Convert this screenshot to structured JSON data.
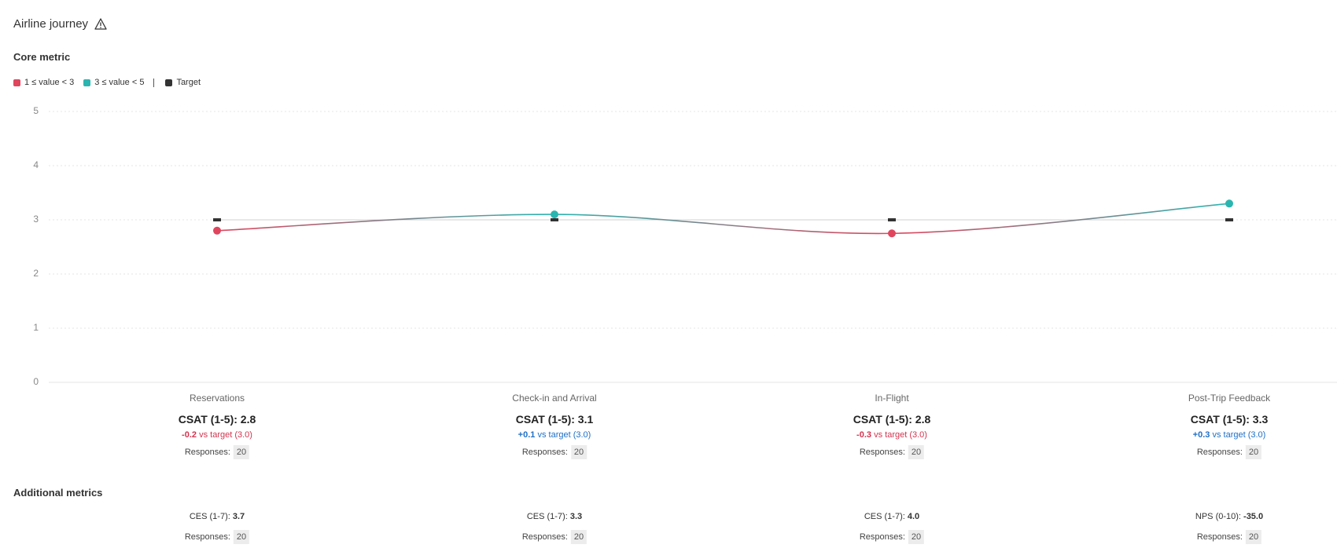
{
  "header": {
    "title": "Airline journey"
  },
  "core_metric": {
    "title": "Core metric"
  },
  "chart_data": {
    "type": "line",
    "categories": [
      "Reservations",
      "Check-in and Arrival",
      "In-Flight",
      "Post-Trip Feedback"
    ],
    "series": [
      {
        "values": [
          2.8,
          3.1,
          2.75,
          3.3
        ],
        "value_labels": [
          "2.8",
          "3.1",
          "2.8",
          "3.3"
        ]
      }
    ],
    "target": {
      "name": "Target",
      "color": "#333333",
      "values": [
        3,
        3,
        3,
        3
      ]
    },
    "ranges": [
      {
        "name": "1 ≤ value < 3",
        "color": "#e0455e",
        "min": 1,
        "max": 3
      },
      {
        "name": "3 ≤ value < 5",
        "color": "#2bb5b0",
        "min": 3,
        "max": 5
      }
    ],
    "ylim": [
      0,
      5
    ],
    "yticks": [
      0,
      1,
      2,
      3,
      4,
      5
    ],
    "grid": true
  },
  "stages": [
    {
      "csat_label": "CSAT (1-5):",
      "delta": "-0.2",
      "vs": "vs target (3.0)",
      "responses_label": "Responses:",
      "responses": "20"
    },
    {
      "csat_label": "CSAT (1-5):",
      "delta": "+0.1",
      "vs": "vs target (3.0)",
      "responses_label": "Responses:",
      "responses": "20"
    },
    {
      "csat_label": "CSAT (1-5):",
      "delta": "-0.3",
      "vs": "vs target (3.0)",
      "responses_label": "Responses:",
      "responses": "20"
    },
    {
      "csat_label": "CSAT (1-5):",
      "delta": "+0.3",
      "vs": "vs target (3.0)",
      "responses_label": "Responses:",
      "responses": "20"
    }
  ],
  "additional": {
    "title": "Additional metrics",
    "items": [
      {
        "label": "CES (1-7):",
        "value": "3.7",
        "responses_label": "Responses:",
        "responses": "20"
      },
      {
        "label": "CES (1-7):",
        "value": "3.3",
        "responses_label": "Responses:",
        "responses": "20"
      },
      {
        "label": "CES (1-7):",
        "value": "4.0",
        "responses_label": "Responses:",
        "responses": "20"
      },
      {
        "label": "NPS (0-10):",
        "value": "-35.0",
        "responses_label": "Responses:",
        "responses": "20"
      }
    ]
  }
}
